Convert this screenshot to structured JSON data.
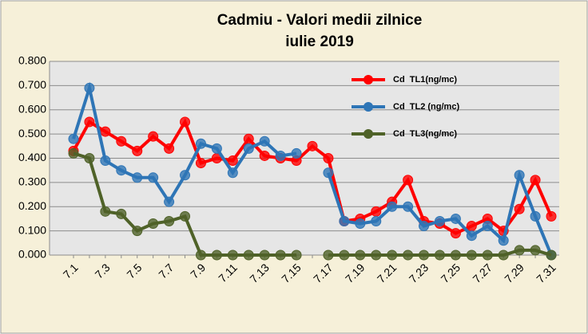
{
  "chart_data": {
    "type": "line",
    "title": [
      "Cadmiu - Valori medii zilnice",
      "iulie 2019"
    ],
    "categories": [
      "7.1",
      null,
      "7.3",
      null,
      "7.5",
      null,
      "7.7",
      null,
      "7.9",
      null,
      "7.11",
      null,
      "7.13",
      null,
      "7.15",
      null,
      "7.17",
      null,
      "7.19",
      null,
      "7.21",
      null,
      "7.23",
      null,
      "7.25",
      null,
      "7.27",
      null,
      "7.29",
      null,
      "7.31"
    ],
    "series": [
      {
        "name": "Cd  TL1(ng/mc)",
        "color": "#ff0000",
        "values": [
          0.43,
          0.55,
          0.51,
          0.47,
          0.43,
          0.49,
          0.44,
          0.55,
          0.38,
          0.4,
          0.39,
          0.48,
          0.41,
          0.4,
          0.39,
          0.45,
          0.4,
          0.14,
          0.15,
          0.18,
          0.22,
          0.31,
          0.14,
          0.13,
          0.09,
          0.12,
          0.15,
          0.1,
          0.19,
          0.31,
          0.16
        ]
      },
      {
        "name": "Cd  TL2 (ng/mc)",
        "color": "#2e75b6",
        "values": [
          0.48,
          0.69,
          0.39,
          0.35,
          0.32,
          0.32,
          0.22,
          0.33,
          0.46,
          0.44,
          0.34,
          0.44,
          0.47,
          0.41,
          0.42,
          null,
          0.34,
          0.14,
          0.13,
          0.14,
          0.2,
          0.2,
          0.12,
          0.14,
          0.15,
          0.08,
          0.12,
          0.06,
          0.33,
          0.16,
          0.0
        ]
      },
      {
        "name": "Cd  TL3(ng/mc)",
        "color": "#4f6228",
        "values": [
          0.42,
          0.4,
          0.18,
          0.17,
          0.1,
          0.13,
          0.14,
          0.16,
          0.0,
          0.0,
          0.0,
          0.0,
          0.0,
          0.0,
          0.0,
          null,
          0.0,
          0.0,
          0.0,
          0.0,
          0.0,
          0.0,
          0.0,
          0.0,
          0.0,
          0.0,
          0.0,
          0.0,
          0.02,
          0.02,
          0.0
        ]
      }
    ],
    "ylim": [
      0,
      0.8
    ],
    "yticks": [
      {
        "value": 0,
        "label": "0.000"
      },
      {
        "value": 0.1,
        "label": "0.100"
      },
      {
        "value": 0.2,
        "label": "0.200"
      },
      {
        "value": 0.3,
        "label": "0.300"
      },
      {
        "value": 0.4,
        "label": "0.400"
      },
      {
        "value": 0.5,
        "label": "0.500"
      },
      {
        "value": 0.6,
        "label": "0.600"
      },
      {
        "value": 0.7,
        "label": "0.700"
      },
      {
        "value": 0.8,
        "label": "0.800"
      }
    ],
    "grid": true
  }
}
